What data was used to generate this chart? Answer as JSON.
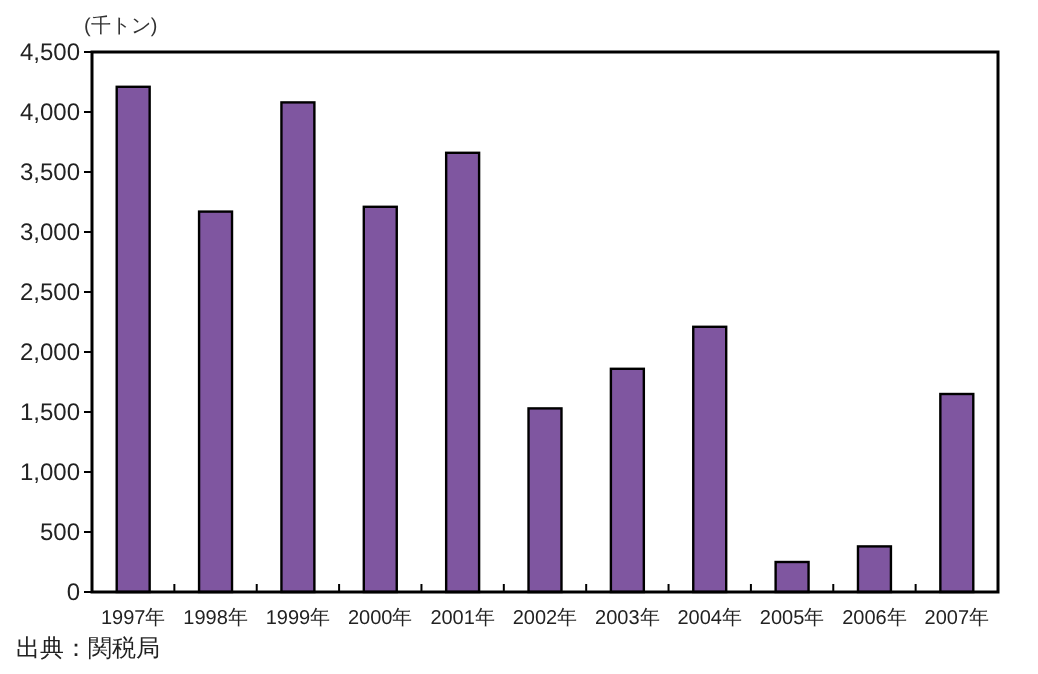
{
  "chart_data": {
    "type": "bar",
    "ylabel": "(千トン)",
    "categories": [
      "1997年",
      "1998年",
      "1999年",
      "2000年",
      "2001年",
      "2002年",
      "2003年",
      "2004年",
      "2005年",
      "2006年",
      "2007年"
    ],
    "values": [
      4210,
      3170,
      4080,
      3210,
      3660,
      1530,
      1860,
      2210,
      250,
      380,
      1650
    ],
    "color": "#7f56a0",
    "ylim": [
      0,
      4500
    ],
    "yticks": [
      {
        "value": 0,
        "label": "0"
      },
      {
        "value": 500,
        "label": "500"
      },
      {
        "value": 1000,
        "label": "1,000"
      },
      {
        "value": 1500,
        "label": "1,500"
      },
      {
        "value": 2000,
        "label": "2,000"
      },
      {
        "value": 2500,
        "label": "2,500"
      },
      {
        "value": 3000,
        "label": "3,000"
      },
      {
        "value": 3500,
        "label": "3,500"
      },
      {
        "value": 4000,
        "label": "4,000"
      },
      {
        "value": 4500,
        "label": "4,500"
      }
    ],
    "grid": false,
    "annotations": [
      "出典：関税局"
    ]
  }
}
